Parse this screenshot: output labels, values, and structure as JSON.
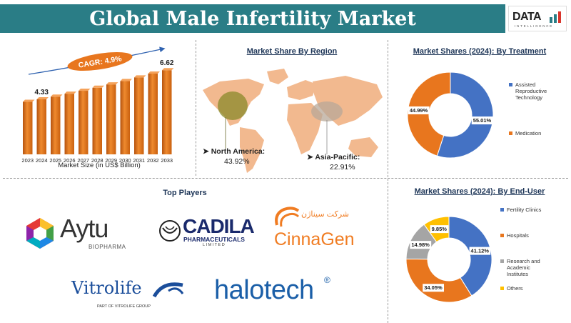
{
  "header": {
    "title": "Global Male Infertility Market",
    "logo_word": "DATA",
    "logo_sub": "INTELLIGENCE"
  },
  "colors": {
    "teal": "#2a7d86",
    "orange": "#e8761e",
    "blue": "#4472c4",
    "gray": "#a5a5a5",
    "yellow": "#ffc000",
    "map": "#f2b98f"
  },
  "market_size": {
    "cagr": "CAGR: 4.9%",
    "label_first": "4.33",
    "label_last": "6.62",
    "xlabel": "Market Size (in US$ Billion)"
  },
  "region": {
    "title": "Market Share By Region",
    "north_america_label": "North America:",
    "north_america_value": "43.92%",
    "asia_label": "Asia-Pacific:",
    "asia_value": "22.91%"
  },
  "treatment": {
    "title": "Market Shares (2024): By Treatment"
  },
  "end_user": {
    "title": "Market Shares (2024): By End-User"
  },
  "players": {
    "title": "Top Players",
    "aytu": "Aytu",
    "aytu_sub": "BIOPHARMA",
    "cadila": "CADILA",
    "cadila_sub": "PHARMACEUTICALS",
    "cadila_sub2": "LIMITED",
    "cinnagen": "CinnaGen",
    "vitrolife": "Vitrolife",
    "vitrolife_sub": "PART OF VITROLIFE GROUP",
    "halotech": "halotech",
    "halotech_mark": "®"
  },
  "chart_data": [
    {
      "type": "bar",
      "categories": [
        "2023",
        "2024",
        "2025",
        "2026",
        "2027",
        "2028",
        "2029",
        "2030",
        "2031",
        "2032",
        "2033"
      ],
      "values": [
        4.13,
        4.33,
        4.54,
        4.77,
        5.0,
        5.24,
        5.5,
        5.77,
        6.05,
        6.35,
        6.62
      ],
      "xlabel": "Market Size (in US$ Billion)",
      "data_labels": {
        "2024": "4.33",
        "2033": "6.62"
      },
      "annotation": "CAGR: 4.9%"
    },
    {
      "type": "pie",
      "title": "Market Shares (2024): By Treatment",
      "labels": [
        "Assisted Reproductive Technology",
        "Medication"
      ],
      "values": [
        55.01,
        44.99
      ],
      "value_labels": [
        "55.01%",
        "44.99%"
      ],
      "colors": [
        "#4472c4",
        "#e8761e"
      ]
    },
    {
      "type": "pie",
      "title": "Market Shares (2024): By End-User",
      "labels": [
        "Fertility Clinics",
        "Hospitals",
        "Research and Academic Institutes",
        "Others"
      ],
      "values": [
        41.12,
        34.05,
        14.98,
        9.85
      ],
      "value_labels": [
        "41.12%",
        "34.05%",
        "14.98%",
        "9.85%"
      ],
      "colors": [
        "#4472c4",
        "#e8761e",
        "#a5a5a5",
        "#ffc000"
      ]
    }
  ]
}
